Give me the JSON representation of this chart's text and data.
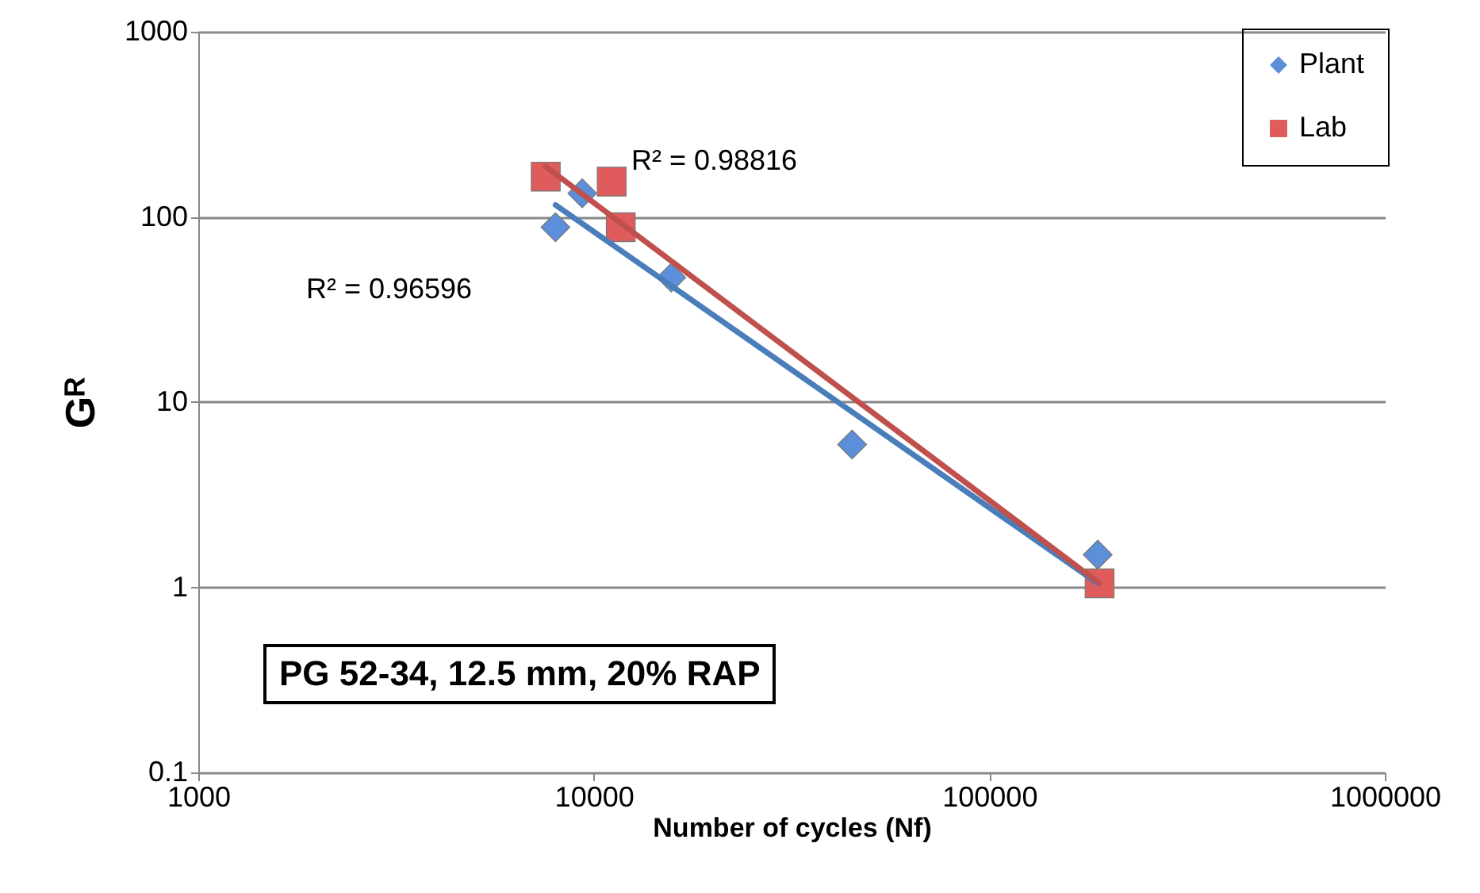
{
  "chart_data": {
    "type": "scatter",
    "xlabel": "Number of cycles (Nf)",
    "ylabel": "Gᴿ",
    "log": "xy",
    "xlim": [
      1000,
      1000000
    ],
    "ylim": [
      0.1,
      1000
    ],
    "xticks": [
      1000,
      10000,
      100000,
      1000000
    ],
    "yticks": [
      0.1,
      1,
      10,
      100,
      1000
    ],
    "grid": "y",
    "legend": "top right",
    "series": [
      {
        "name": "Plant",
        "color": "#5b8fd9",
        "marker": "diamond",
        "x": [
          8000,
          9350,
          15700,
          45000,
          188000
        ],
        "values": [
          88,
          134,
          47,
          5.9,
          1.5
        ]
      },
      {
        "name": "Lab",
        "color": "#e05c5c",
        "marker": "square",
        "x": [
          7560,
          11100,
          11700,
          190000
        ],
        "values": [
          165,
          155,
          88,
          1.05
        ]
      },
      {
        "type": "line",
        "color": "#4a7ebb",
        "x": [
          8000,
          188000
        ],
        "values": [
          116,
          1.05
        ]
      },
      {
        "type": "line",
        "color": "#c0504d",
        "x": [
          7560,
          190000
        ],
        "values": [
          187,
          1.05
        ]
      }
    ],
    "annotations": [
      "R² = 0.98816",
      "R² = 0.96596",
      "PG 52-34, 12.5 mm, 20% RAP"
    ]
  }
}
